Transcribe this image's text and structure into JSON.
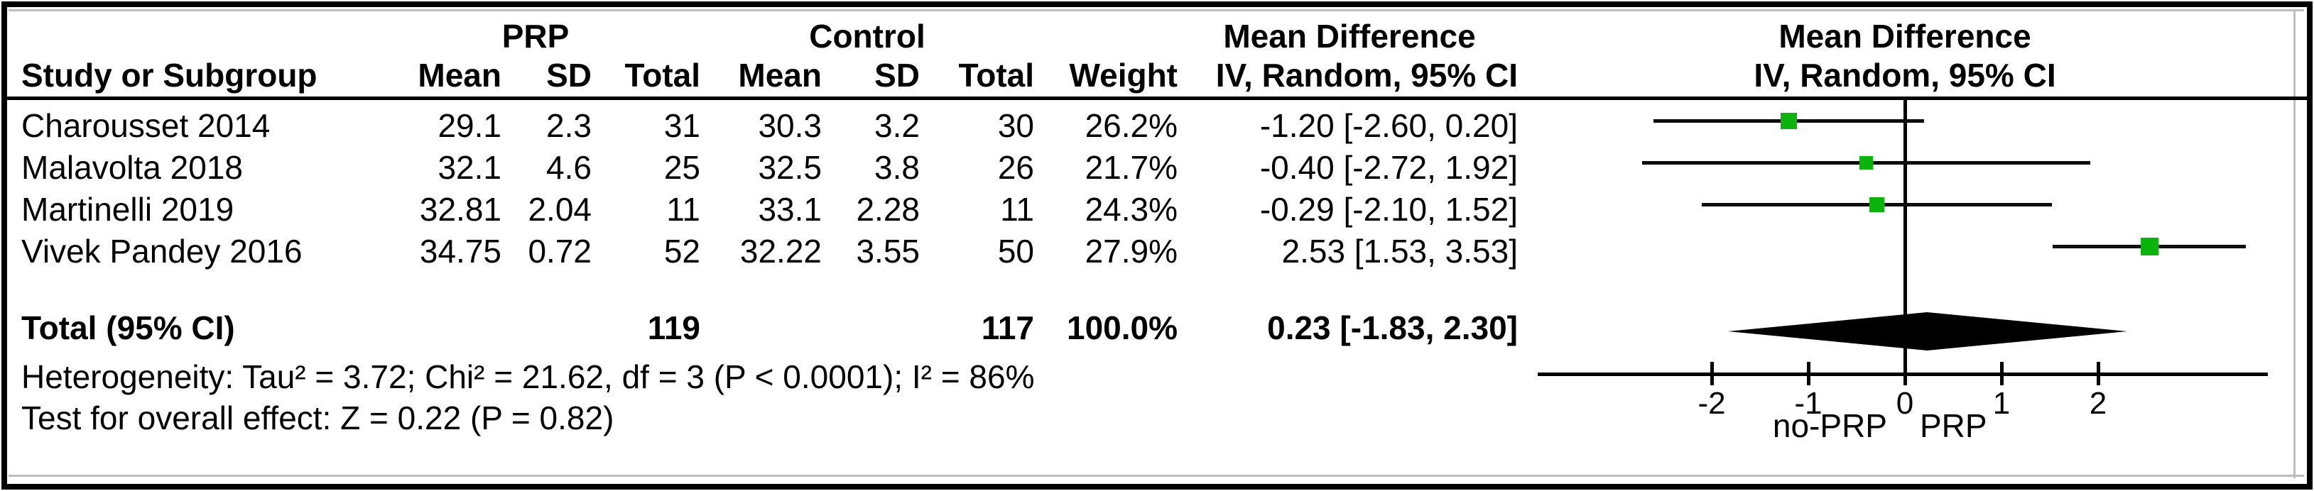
{
  "header": {
    "group1": "PRP",
    "group2": "Control",
    "effect_title": "Mean Difference",
    "effect_subtitle": "IV, Random, 95% CI",
    "plot_title": "Mean Difference",
    "plot_subtitle": "IV, Random, 95% CI",
    "col_labels": {
      "study": "Study or Subgroup",
      "mean": "Mean",
      "sd": "SD",
      "total": "Total",
      "weight": "Weight"
    }
  },
  "rows": [
    {
      "study": "Charousset 2014",
      "mean1": "29.1",
      "sd1": "2.3",
      "total1": "31",
      "mean2": "30.3",
      "sd2": "3.2",
      "total2": "30",
      "weight": "26.2%",
      "ci": "-1.20 [-2.60, 0.20]"
    },
    {
      "study": "Malavolta 2018",
      "mean1": "32.1",
      "sd1": "4.6",
      "total1": "25",
      "mean2": "32.5",
      "sd2": "3.8",
      "total2": "26",
      "weight": "21.7%",
      "ci": "-0.40 [-2.72, 1.92]"
    },
    {
      "study": "Martinelli 2019",
      "mean1": "32.81",
      "sd1": "2.04",
      "total1": "11",
      "mean2": "33.1",
      "sd2": "2.28",
      "total2": "11",
      "weight": "24.3%",
      "ci": "-0.29 [-2.10, 1.52]"
    },
    {
      "study": "Vivek Pandey 2016",
      "mean1": "34.75",
      "sd1": "0.72",
      "total1": "52",
      "mean2": "32.22",
      "sd2": "3.55",
      "total2": "50",
      "weight": "27.9%",
      "ci": "2.53 [1.53, 3.53]"
    }
  ],
  "total": {
    "label": "Total (95% CI)",
    "total1": "119",
    "total2": "117",
    "weight": "100.0%",
    "ci": "0.23 [-1.83, 2.30]"
  },
  "footnotes": {
    "heterogeneity": "Heterogeneity: Tau² = 3.72; Chi² = 21.62, df = 3 (P < 0.0001); I² = 86%",
    "overall_effect": "Test for overall effect: Z = 0.22 (P = 0.82)"
  },
  "chart_data": {
    "type": "forest",
    "title": "Mean Difference",
    "subtitle": "IV, Random, 95% CI",
    "x_ticks": [
      -2,
      -1,
      0,
      1,
      2
    ],
    "xlim": [
      -3.8,
      3.76
    ],
    "axis_label_left": "no-PRP",
    "axis_label_right": "PRP",
    "marker_color": "#0db30d",
    "line_color": "#0d0d0d",
    "studies": [
      {
        "name": "Charousset 2014",
        "md": -1.2,
        "lo": -2.6,
        "hi": 0.2,
        "weight": 26.2
      },
      {
        "name": "Malavolta 2018",
        "md": -0.4,
        "lo": -2.72,
        "hi": 1.92,
        "weight": 21.7
      },
      {
        "name": "Martinelli 2019",
        "md": -0.29,
        "lo": -2.1,
        "hi": 1.52,
        "weight": 24.3
      },
      {
        "name": "Vivek Pandey 2016",
        "md": 2.53,
        "lo": 1.53,
        "hi": 3.53,
        "weight": 27.9
      }
    ],
    "total": {
      "md": 0.23,
      "lo": -1.83,
      "hi": 2.3
    }
  }
}
